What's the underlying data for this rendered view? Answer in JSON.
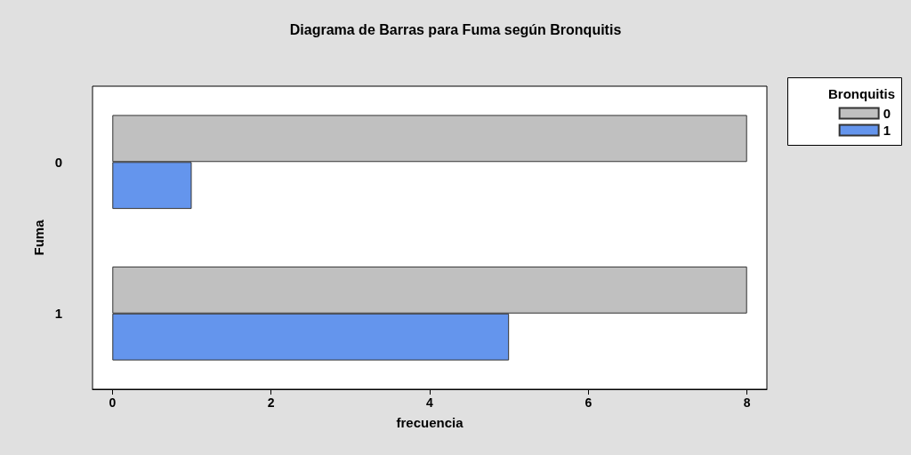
{
  "chart_data": {
    "type": "bar",
    "orientation": "horizontal",
    "title": "Diagrama de Barras para Fuma según Bronquitis",
    "xlabel": "frecuencia",
    "ylabel": "Fuma",
    "legend_title": "Bronquitis",
    "legend": "top right",
    "grid": false,
    "categories": [
      "0",
      "1"
    ],
    "series": [
      {
        "name": "0",
        "color": "#c0c0c0",
        "values": [
          8,
          8
        ]
      },
      {
        "name": "1",
        "color": "#6495ed",
        "values": [
          1,
          5
        ]
      }
    ],
    "xlim": [
      -0.25,
      8.25
    ],
    "xticks": [
      0,
      2,
      4,
      6,
      8
    ]
  }
}
